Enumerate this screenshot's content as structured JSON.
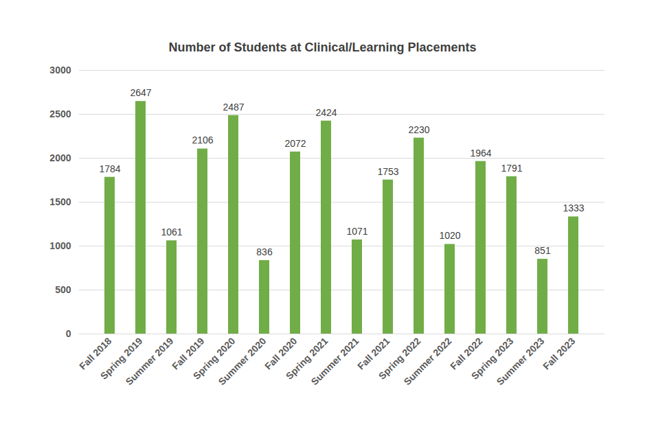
{
  "chart_data": {
    "type": "bar",
    "title": "Number of Students at Clinical/Learning Placements",
    "categories": [
      "Fall 2018",
      "Spring 2019",
      "Summer 2019",
      "Fall 2019",
      "Spring 2020",
      "Summer 2020",
      "Fall 2020",
      "Spring 2021",
      "Summer 2021",
      "Fall 2021",
      "Spring 2022",
      "Summer 2022",
      "Fall 2022",
      "Spring 2023",
      "Summer 2023",
      "Fall 2023"
    ],
    "values": [
      1784,
      2647,
      1061,
      2106,
      2487,
      836,
      2072,
      2424,
      1071,
      1753,
      2230,
      1020,
      1964,
      1791,
      851,
      1333
    ],
    "color": "#70ad47",
    "ylim": [
      0,
      3000
    ],
    "yticks": [
      0,
      500,
      1000,
      1500,
      2000,
      2500,
      3000
    ],
    "grid": true,
    "data_labels": true
  }
}
